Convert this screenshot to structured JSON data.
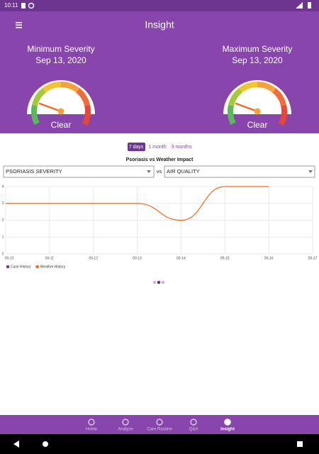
{
  "status_bar": {
    "time": "10:11"
  },
  "header": {
    "title": "Insight"
  },
  "gauges": [
    {
      "label": "Minimum Severity",
      "date": "Sep 13, 2020",
      "status": "Clear"
    },
    {
      "label": "Maximum Severity",
      "date": "Sep 13, 2020",
      "status": "Clear"
    }
  ],
  "tabs": [
    "7 days",
    "1 month",
    "3 months"
  ],
  "selectors": {
    "left": "PSORIASIS SEVERITY",
    "separator": "vs",
    "right": "AIR QUALITY"
  },
  "chart_data": {
    "type": "line",
    "title": "Psoriasis vs Weather Impact",
    "categories": [
      "09-10",
      "09-11",
      "09-12",
      "09-13",
      "09-14",
      "09-15",
      "09-16",
      "09-17"
    ],
    "series": [
      {
        "name": "Case History",
        "color": "#7b3fa0",
        "values": [
          null,
          null,
          null,
          null,
          null,
          null,
          null,
          null
        ]
      },
      {
        "name": "Weather History",
        "color": "#f26b1d",
        "values": [
          3,
          3,
          3,
          3,
          2,
          4,
          4,
          null
        ]
      }
    ],
    "ylim": [
      0,
      4
    ],
    "yticks": [
      0,
      1,
      2,
      3,
      4
    ],
    "grid": true,
    "legend": "bottom-left"
  },
  "nav": [
    "Home",
    "Analyze",
    "Care Routine",
    "Q&A",
    "Insight"
  ]
}
